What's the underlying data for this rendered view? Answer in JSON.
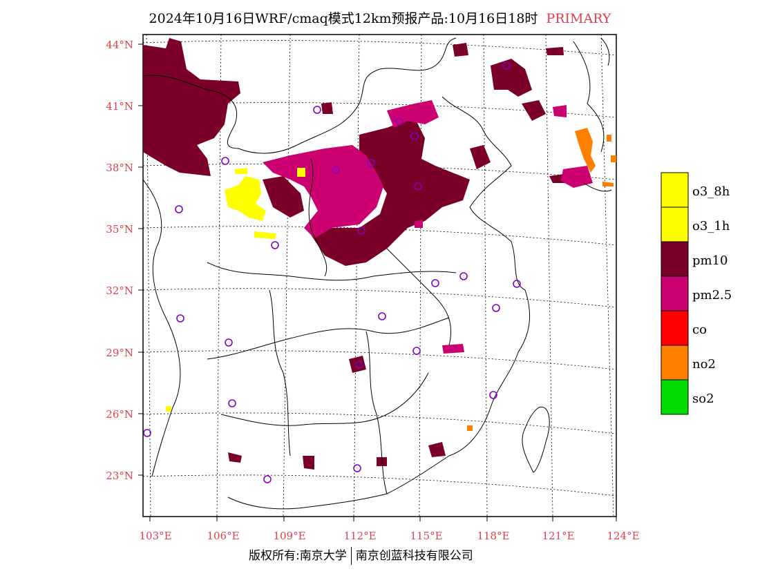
{
  "title": {
    "main": "2024年10月16日WRF/cmaq模式12km预报产品:10月16日18时",
    "tag": "PRIMARY"
  },
  "footer": {
    "left": "版权所有:南京大学",
    "right": "南京创蓝科技有限公司"
  },
  "lat_labels": [
    "44°N",
    "41°N",
    "38°N",
    "35°N",
    "32°N",
    "29°N",
    "26°N",
    "23°N"
  ],
  "lon_labels": [
    "103°E",
    "106°E",
    "109°E",
    "112°E",
    "115°E",
    "118°E",
    "121°E",
    "124°E"
  ],
  "legend": [
    {
      "label": "o3_8h",
      "color": "#ffff00"
    },
    {
      "label": "o3_1h",
      "color": "#ffff00"
    },
    {
      "label": "pm10",
      "color": "#7a0028"
    },
    {
      "label": "pm2.5",
      "color": "#cc0070"
    },
    {
      "label": "co",
      "color": "#ff0000"
    },
    {
      "label": "no2",
      "color": "#ff7f00"
    },
    {
      "label": "so2",
      "color": "#00dd00"
    }
  ],
  "colors": {
    "axis_label": "#e0404a",
    "station_marker": "#8000c0"
  }
}
